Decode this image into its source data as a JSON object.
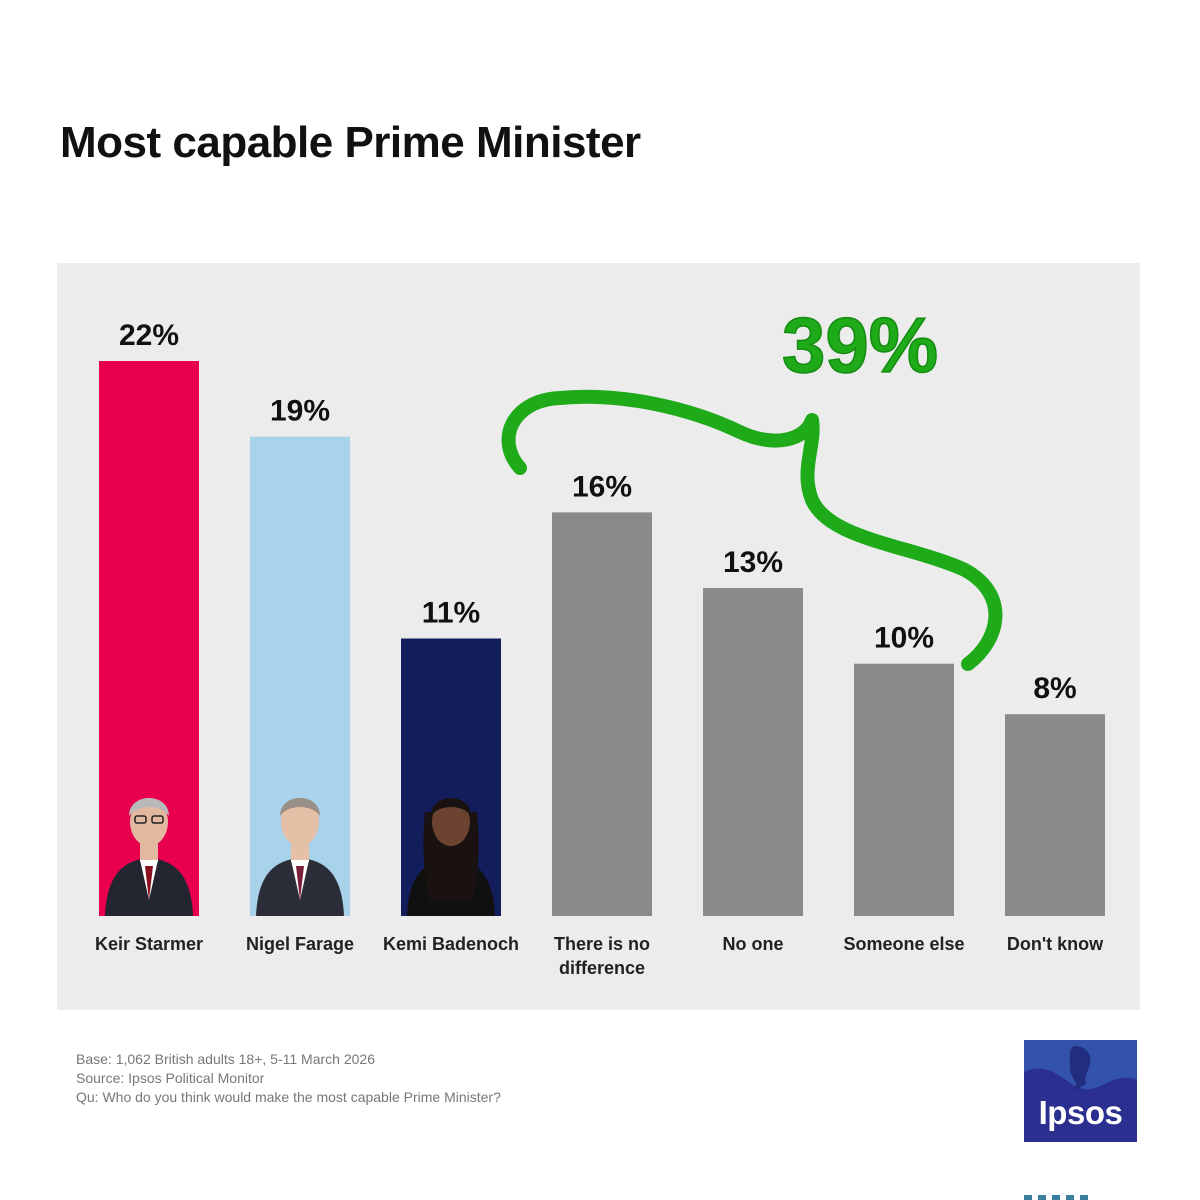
{
  "header": {
    "title": "Most capable Prime Minister"
  },
  "annotation": {
    "label": "39%",
    "color": "#1faa1a"
  },
  "chart_data": {
    "type": "bar",
    "categories": [
      "Keir Starmer",
      "Nigel Farage",
      "Kemi Badenoch",
      "There is no difference",
      "No one",
      "Someone else",
      "Don't know"
    ],
    "category_lines": [
      [
        "Keir Starmer"
      ],
      [
        "Nigel Farage"
      ],
      [
        "Kemi Badenoch"
      ],
      [
        "There is no",
        "difference"
      ],
      [
        "No one"
      ],
      [
        "Someone else"
      ],
      [
        "Don't know"
      ]
    ],
    "values": [
      22,
      19,
      11,
      16,
      13,
      10,
      8
    ],
    "value_labels": [
      "22%",
      "19%",
      "11%",
      "16%",
      "13%",
      "10%",
      "8%"
    ],
    "colors": [
      "#e8004f",
      "#a9d3ea",
      "#141d5c",
      "#8a8a8a",
      "#8a8a8a",
      "#8a8a8a",
      "#8a8a8a"
    ],
    "photo_icons": [
      "portrait-starmer",
      "portrait-farage",
      "portrait-badenoch"
    ],
    "ylim": [
      0,
      22
    ],
    "grid": false,
    "legend": "none"
  },
  "footnotes": {
    "base": "Base: 1,062 British adults 18+, 5-11 March 2026",
    "source": "Source: Ipsos Political Monitor",
    "question": "Qu: Who do you think would make the most capable Prime Minister?"
  },
  "logo": {
    "text": "Ipsos",
    "color": "#2b2f8f"
  }
}
